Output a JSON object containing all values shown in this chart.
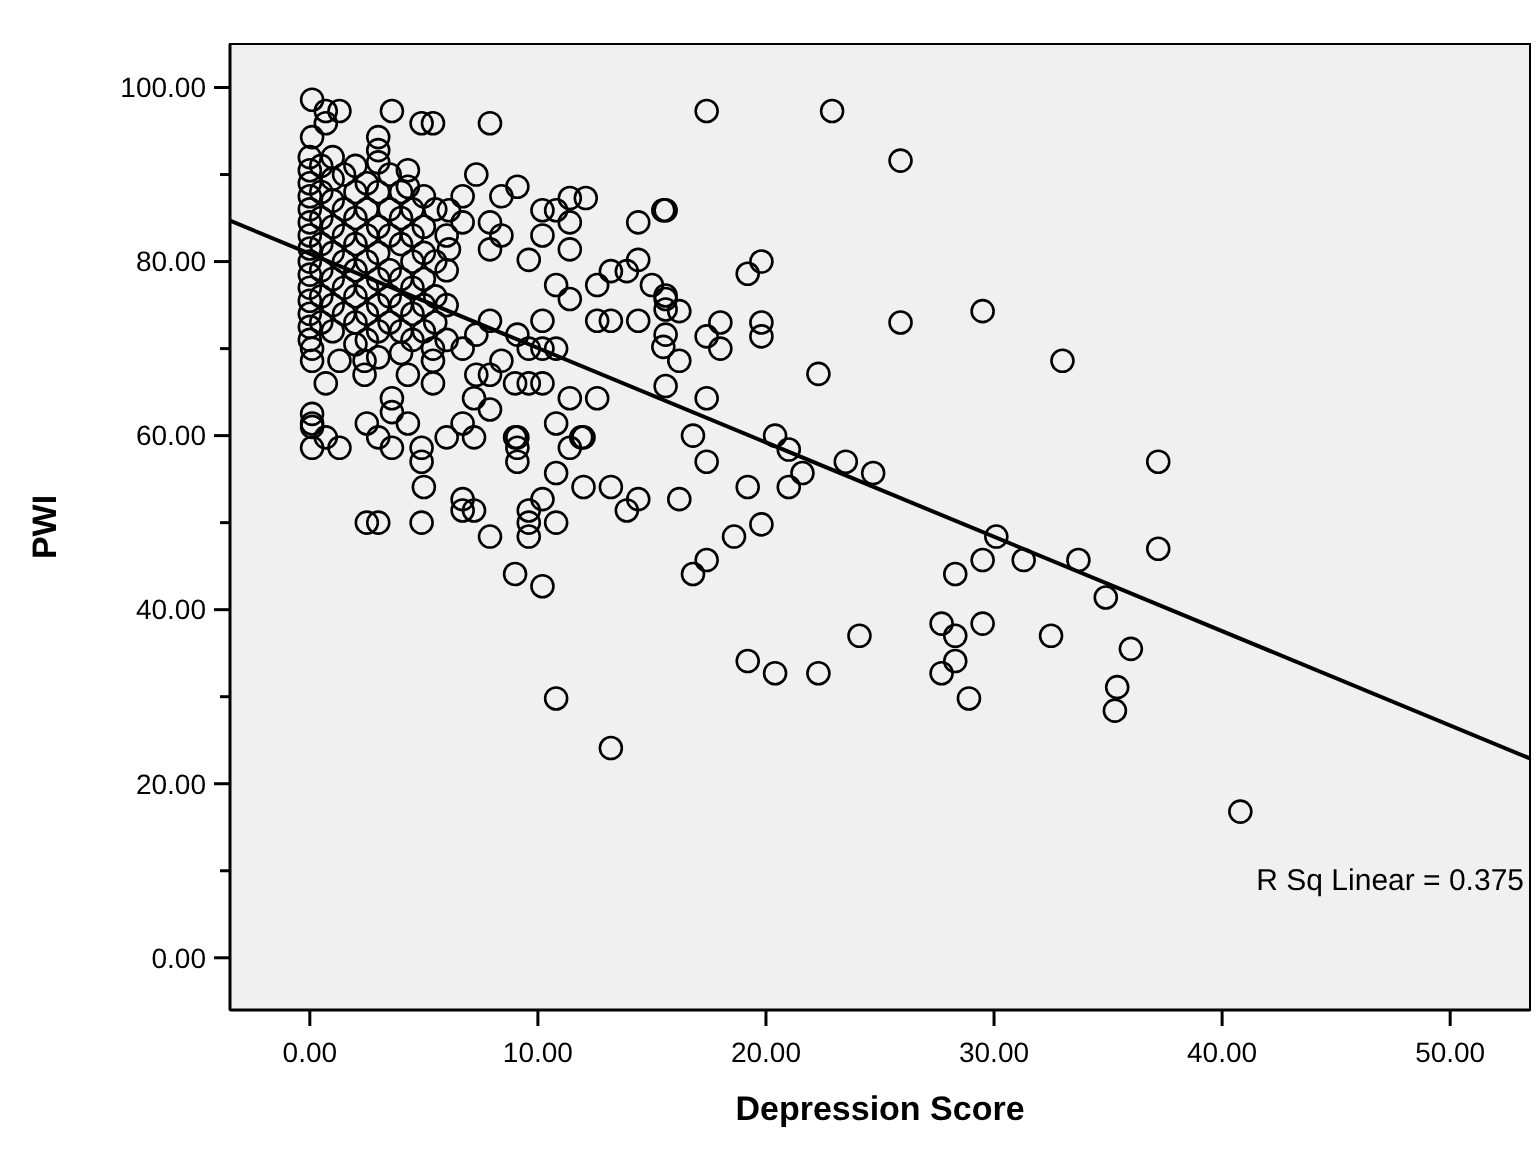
{
  "chart_data": {
    "type": "scatter",
    "xlabel": "Depression Score",
    "ylabel": "PWI",
    "xlim": [
      -3.5,
      53.5
    ],
    "ylim": [
      -6,
      105
    ],
    "xticks": [
      {
        "value": 0,
        "label": "0.00"
      },
      {
        "value": 10,
        "label": "10.00"
      },
      {
        "value": 20,
        "label": "20.00"
      },
      {
        "value": 30,
        "label": "30.00"
      },
      {
        "value": 40,
        "label": "40.00"
      },
      {
        "value": 50,
        "label": "50.00"
      }
    ],
    "yticks": [
      {
        "value": 0,
        "label": "0.00"
      },
      {
        "value": 10,
        "label": null
      },
      {
        "value": 20,
        "label": "20.00"
      },
      {
        "value": 30,
        "label": null
      },
      {
        "value": 40,
        "label": "40.00"
      },
      {
        "value": 50,
        "label": null
      },
      {
        "value": 60,
        "label": "60.00"
      },
      {
        "value": 70,
        "label": null
      },
      {
        "value": 80,
        "label": "80.00"
      },
      {
        "value": 90,
        "label": null
      },
      {
        "value": 100,
        "label": "100.00"
      }
    ],
    "grid": false,
    "marker": "circle",
    "annotations": [
      "R Sq Linear = 0.375"
    ],
    "series": [
      {
        "color": "#000000",
        "x": [
          0,
          0,
          0,
          0,
          0,
          0,
          0,
          0,
          0,
          0,
          0,
          0,
          0,
          0,
          0,
          0.5,
          0.5,
          0.5,
          0.5,
          0.5,
          0.5,
          0.5,
          1,
          1,
          1,
          1,
          1,
          1,
          1,
          1,
          1.5,
          1.5,
          1.5,
          1.5,
          1.5,
          1.5,
          2,
          2,
          2,
          2,
          2,
          2,
          2,
          2,
          2.5,
          2.5,
          2.5,
          2.5,
          2.5,
          2.5,
          2.5,
          3,
          3,
          3,
          3,
          3,
          3,
          3,
          3.5,
          3.5,
          3.5,
          3.5,
          3.5,
          3.5,
          4,
          4,
          4,
          4,
          4,
          4,
          4,
          4.5,
          4.5,
          4.5,
          4.5,
          4.5,
          4.5,
          5,
          5,
          5,
          5,
          5,
          5.5,
          5.5,
          5.5,
          5.5,
          6,
          6,
          6,
          6,
          0.1,
          0.7,
          1.3,
          0.7,
          0.1,
          3.0,
          3.0,
          3.0,
          3.6,
          4.9,
          5.4,
          7.9,
          0.1,
          0.1,
          0.1,
          0.1,
          4.3,
          7.3,
          9.1,
          4.3,
          5.0,
          6.7,
          8.4,
          10.2,
          10.8,
          11.4,
          12.1,
          14.4,
          15.5,
          11.4,
          10.2,
          11.4,
          7.9,
          7.9,
          8.4,
          6.1,
          6.7,
          6.1,
          9.6,
          14.4,
          13.2,
          13.9,
          15.0,
          15.6,
          12.6,
          12.6,
          13.2,
          14.4,
          10.8,
          11.4,
          10.2,
          10.2,
          10.8,
          9.6,
          9.1,
          7.9,
          7.3,
          8.4,
          6.7,
          7.3,
          7.9,
          5.4,
          5.4,
          5.4,
          4.3,
          3.6,
          3.6,
          2.4,
          2.4,
          1.3,
          0.7,
          9.0,
          9.6,
          10.2,
          11.4,
          12.6,
          7.2,
          7.9,
          9.0,
          11.9,
          0.1,
          0.1,
          1.3,
          0.7,
          2.5,
          3.0,
          3.6,
          4.3,
          4.9,
          4.9,
          6.0,
          7.2,
          6.7,
          9.1,
          9.1,
          9.1,
          10.8,
          10.8,
          11.4,
          12.0,
          12.0,
          13.2,
          14.4,
          13.9,
          5.0,
          6.7,
          6.7,
          7.2,
          2.5,
          3.0,
          4.9,
          7.9,
          9.6,
          9.6,
          9.6,
          10.2,
          10.8,
          9.0,
          10.2,
          10.8,
          13.2,
          17.4,
          22.9,
          25.9,
          15.6,
          19.8,
          19.2,
          15.6,
          15.6,
          16.2,
          18.0,
          19.8,
          19.8,
          17.4,
          18.0,
          15.6,
          15.5,
          16.2,
          25.9,
          29.5,
          33.0,
          15.6,
          17.4,
          22.3,
          16.8,
          17.4,
          20.4,
          21.0,
          21.6,
          23.5,
          24.7,
          19.2,
          21.0,
          16.2,
          19.8,
          18.6,
          17.4,
          16.8,
          30.1,
          29.5,
          31.3,
          33.7,
          28.3,
          34.9,
          24.1,
          27.7,
          29.5,
          28.3,
          32.5,
          28.3,
          27.7,
          19.2,
          20.4,
          22.3,
          28.9,
          35.4,
          35.3,
          37.2,
          37.2,
          36.0,
          40.8
        ],
        "values": [
          92,
          90.5,
          89,
          87.5,
          86,
          84.5,
          83,
          81.5,
          80,
          78.5,
          77,
          75.5,
          74,
          72.5,
          71,
          91,
          88,
          85,
          82,
          79,
          76,
          73,
          92,
          89.5,
          87,
          84,
          81,
          78,
          75,
          72,
          90,
          86,
          83,
          80,
          77,
          74,
          91,
          88,
          85,
          82,
          79,
          76,
          73,
          70.5,
          89,
          86,
          83,
          80,
          77,
          74,
          71,
          88,
          84,
          81,
          78,
          75,
          72,
          69,
          90,
          86,
          83,
          79,
          76,
          73,
          88,
          85,
          82,
          78,
          75,
          72,
          69.5,
          86,
          83,
          80,
          77,
          74,
          71,
          84,
          81,
          78,
          75,
          72,
          86,
          80,
          76,
          73,
          83,
          79,
          75,
          71,
          98.6,
          97.3,
          97.3,
          95.9,
          94.3,
          94.3,
          92.8,
          91.4,
          97.3,
          95.9,
          95.9,
          95.9,
          70,
          68.6,
          62.5,
          61,
          90.5,
          90,
          88.6,
          88.6,
          87.5,
          87.5,
          87.5,
          85.9,
          85.9,
          87.3,
          87.3,
          84.5,
          85.9,
          84.5,
          83,
          81.4,
          84.5,
          81.4,
          83,
          85.9,
          84.5,
          81.4,
          80.2,
          80.2,
          78.9,
          78.9,
          77.3,
          75.7,
          77.3,
          73.2,
          73.2,
          73.2,
          77.3,
          75.7,
          73.2,
          70,
          70,
          70,
          71.6,
          73.2,
          71.6,
          68.6,
          70,
          67,
          67,
          68.6,
          70,
          66,
          67,
          64.3,
          62.7,
          67,
          68.6,
          68.6,
          66,
          66,
          66,
          66,
          64.3,
          64.3,
          64.3,
          63,
          59.8,
          59.8,
          61.4,
          58.6,
          58.6,
          59.8,
          61.4,
          59.8,
          58.6,
          61.4,
          58.6,
          57,
          59.8,
          59.8,
          61.4,
          59.8,
          58.6,
          57,
          61.4,
          55.7,
          58.6,
          59.8,
          54.1,
          54.1,
          52.7,
          51.4,
          54.1,
          52.7,
          51.4,
          51.4,
          50,
          50,
          50,
          48.4,
          51.4,
          50,
          48.4,
          52.7,
          50,
          44.1,
          42.7,
          29.8,
          24.1,
          97.3,
          97.3,
          91.6,
          85.9,
          80,
          78.6,
          76.1,
          74.5,
          74.3,
          73,
          73,
          71.4,
          71.4,
          70,
          71.6,
          70.2,
          68.6,
          73,
          74.3,
          68.6,
          65.7,
          64.3,
          67.1,
          60,
          57,
          60,
          58.4,
          55.7,
          57,
          55.7,
          54.1,
          54.1,
          52.7,
          49.8,
          48.4,
          45.7,
          44.1,
          48.4,
          45.7,
          45.7,
          45.7,
          44.1,
          41.4,
          37,
          38.4,
          38.4,
          37,
          37,
          34.1,
          32.7,
          34.1,
          32.7,
          32.7,
          29.8,
          31.1,
          28.4,
          57,
          47,
          35.5,
          16.8
        ]
      },
      {
        "type": "line",
        "marker": "none",
        "color": "#000000",
        "x": [
          -3.5,
          53.5
        ],
        "values": [
          84.7,
          22.9
        ]
      }
    ]
  }
}
